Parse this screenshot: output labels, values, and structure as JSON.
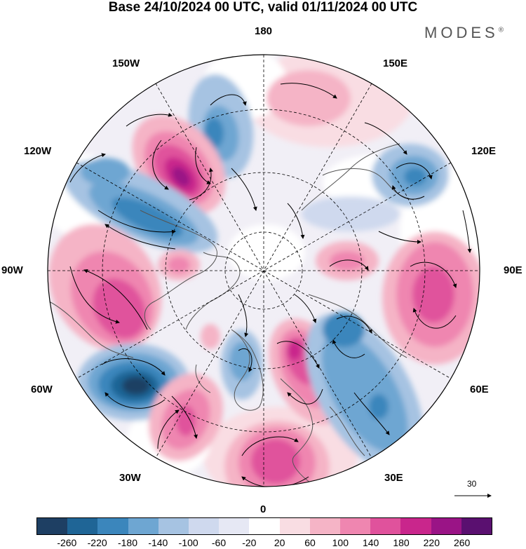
{
  "title": "Base 24/10/2024 00 UTC, valid 01/11/2024 00 UTC",
  "brand": {
    "name": "MODES",
    "mark": "®"
  },
  "longitude_labels": {
    "n180": "180",
    "w150": "150W",
    "e150": "150E",
    "w120": "120W",
    "e120": "120E",
    "w90": "90W",
    "e90": "90E",
    "w60": "60W",
    "e60": "60E",
    "w30": "30W",
    "e30": "30E",
    "s0": "0"
  },
  "reference_vector": {
    "value": "30",
    "icon": "arrow-right-icon"
  },
  "colorbar": {
    "colors": [
      "#1e3f63",
      "#1f6596",
      "#3b86bc",
      "#6ea6d2",
      "#a6c3e2",
      "#cfd9ee",
      "#e6e8f4",
      "#ffffff",
      "#f9dde3",
      "#f5b4c6",
      "#ef86b0",
      "#e0529c",
      "#c9268c",
      "#9a1486",
      "#5a1070"
    ],
    "labels": [
      "-260",
      "-220",
      "-180",
      "-140",
      "-100",
      "-60",
      "-20",
      "20",
      "60",
      "100",
      "140",
      "180",
      "220",
      "260"
    ]
  },
  "map": {
    "projection": "north-polar-stereographic",
    "field": "geopotential height anomaly",
    "anomaly_centers": [
      {
        "name": "low-aleutian-west",
        "value": -140,
        "color": "#3b86bc"
      },
      {
        "name": "high-gulf-alaska",
        "value": 220,
        "color": "#9a1486"
      },
      {
        "name": "low-canada",
        "value": -180,
        "color": "#1f6596"
      },
      {
        "name": "high-pacific-nw",
        "value": 180,
        "color": "#e0529c"
      },
      {
        "name": "low-labrador-sea",
        "value": -260,
        "color": "#1e3f63"
      },
      {
        "name": "high-central-atlantic",
        "value": 140,
        "color": "#ef86b0"
      },
      {
        "name": "high-western-europe",
        "value": 180,
        "color": "#e0529c"
      },
      {
        "name": "high-scandinavia",
        "value": 180,
        "color": "#e0529c"
      },
      {
        "name": "low-greenland",
        "value": -140,
        "color": "#6ea6d2"
      },
      {
        "name": "low-western-siberia",
        "value": -180,
        "color": "#3b86bc"
      },
      {
        "name": "low-eastern-europe",
        "value": -140,
        "color": "#6ea6d2"
      },
      {
        "name": "high-central-asia",
        "value": 140,
        "color": "#ef86b0"
      },
      {
        "name": "low-east-siberia",
        "value": -180,
        "color": "#3b86bc"
      },
      {
        "name": "high-north-pacific",
        "value": 60,
        "color": "#f5b4c6"
      }
    ]
  }
}
